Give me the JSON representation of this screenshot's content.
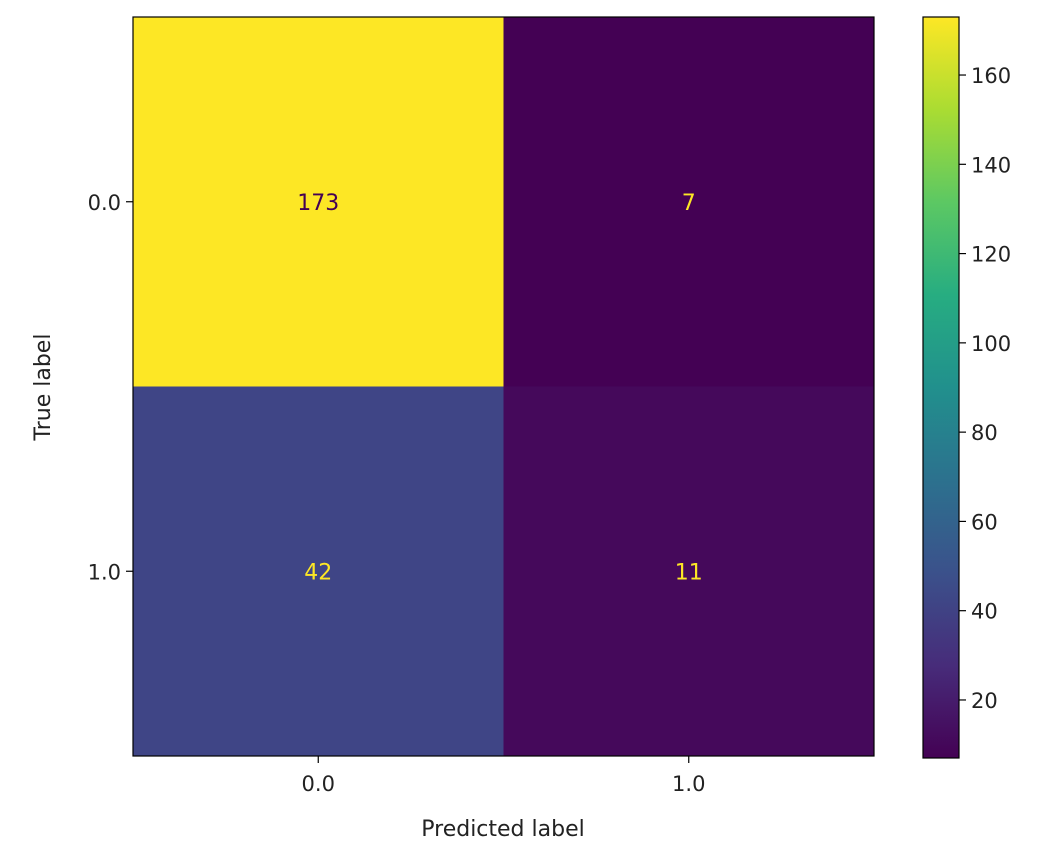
{
  "chart_data": {
    "type": "heatmap",
    "xlabel": "Predicted label",
    "ylabel": "True label",
    "x_categories": [
      "0.0",
      "1.0"
    ],
    "y_categories": [
      "0.0",
      "1.0"
    ],
    "matrix": [
      [
        173,
        7
      ],
      [
        42,
        11
      ]
    ],
    "colormap": "viridis",
    "color_range": [
      7,
      173
    ],
    "colorbar_ticks": [
      20,
      40,
      60,
      80,
      100,
      120,
      140,
      160
    ],
    "annotation_colors": {
      "on_light": "#440154",
      "on_dark": "#fde725"
    }
  }
}
